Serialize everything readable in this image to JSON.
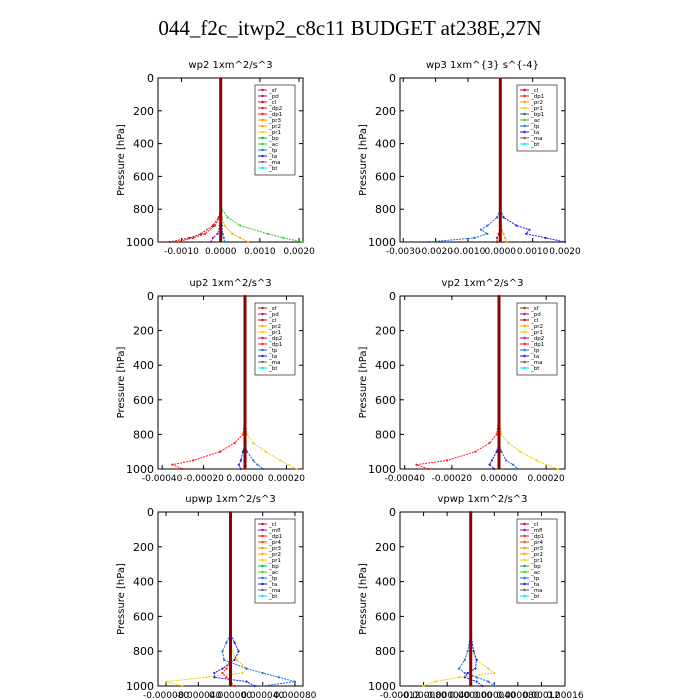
{
  "page": {
    "title": "044_f2c_itwp2_c8c11  BUDGET at238E,27N"
  },
  "colors": {
    "_sf": "#b22222",
    "_pd": "#8b1a8b",
    "_cl": "#d0021b",
    "_dp2": "#c2185b",
    "_dp1": "#ff1a1a",
    "_pr3": "#ff8c00",
    "_pr2": "#ffa500",
    "_pr1": "#f0d000",
    "_bp": "#00b050",
    "_ac": "#33cc33",
    "_tp": "#1f6fd6",
    "_ta": "#1a1aee",
    "_ma": "#666666",
    "_bt": "#00e5ff",
    "_mfl": "#7b1fa2",
    "_pr4": "#e65100",
    "_dp": "#b71c1c",
    "_pr": "#ff6f00"
  },
  "chart_data": [
    {
      "type": "line",
      "title": "wp2   1xm^2/s^3",
      "ylabel": "Pressure  [hPa]",
      "xlim": [
        -0.0016,
        0.0021
      ],
      "ylim": [
        1000,
        0
      ],
      "xticks": [
        "-0.0010",
        "0.0000",
        "0.0010",
        "0.0020"
      ],
      "xtick_values": [
        -0.001,
        0.0,
        0.001,
        0.002
      ],
      "yticks": [
        "0",
        "200",
        "400",
        "600",
        "800",
        "1000"
      ],
      "ytick_values": [
        0,
        200,
        400,
        600,
        800,
        1000
      ],
      "legend": [
        "_sf",
        "_pd",
        "_cl",
        "_dp2",
        "_dp1",
        "_pr3",
        "_pr2",
        "_pr1",
        "_bp",
        "_ac",
        "_tp",
        "_ta",
        "_ma",
        "_bt"
      ],
      "legend_position": "top-right",
      "pressure": [
        0,
        100,
        200,
        300,
        400,
        500,
        600,
        700,
        800,
        850,
        900,
        950,
        975,
        1000
      ],
      "series": [
        {
          "name": "_ac",
          "values": [
            0,
            0,
            0,
            0,
            0,
            0,
            0,
            0,
            2e-05,
            0.00018,
            0.0005,
            0.0012,
            0.0016,
            0.0021
          ]
        },
        {
          "name": "_pr2",
          "values": [
            0,
            0,
            0,
            0,
            0,
            0,
            0,
            0,
            0,
            3e-05,
            0.0001,
            0.0003,
            0.0005,
            0.0007
          ]
        },
        {
          "name": "_cl",
          "values": [
            0,
            0,
            0,
            0,
            0,
            0,
            0,
            0,
            0,
            -5e-05,
            -0.0002,
            -0.0005,
            -0.0008,
            -0.0013
          ]
        },
        {
          "name": "_dp1",
          "values": [
            0,
            0,
            0,
            0,
            0,
            0,
            0,
            0,
            0,
            -3e-05,
            -0.00015,
            -0.0004,
            -0.0007,
            -0.0011
          ]
        },
        {
          "name": "_pd",
          "values": [
            0,
            0,
            0,
            0,
            0,
            0,
            0,
            0,
            0,
            0,
            -2e-05,
            -8e-05,
            -0.0002,
            -0.00025
          ]
        },
        {
          "name": "_tp",
          "values": [
            0,
            0,
            0,
            0,
            0,
            0,
            0,
            0,
            0,
            1e-05,
            3e-05,
            5e-05,
            8e-05,
            0.0001
          ]
        }
      ]
    },
    {
      "type": "line",
      "title": "wp3   1xm^{3} s^{-4}",
      "ylabel": "Pressure  [hPa]",
      "xlim": [
        -0.0031,
        0.002
      ],
      "ylim": [
        1000,
        0
      ],
      "xticks": [
        "-0.0030",
        "-0.0020",
        "-0.0010",
        "0.0000",
        "0.0010",
        "0.0020"
      ],
      "xtick_values": [
        -0.003,
        -0.002,
        -0.001,
        0.0,
        0.001,
        0.002
      ],
      "yticks": [
        "0",
        "200",
        "400",
        "600",
        "800",
        "1000"
      ],
      "ytick_values": [
        0,
        200,
        400,
        600,
        800,
        1000
      ],
      "legend": [
        "_cl",
        "_dp1",
        "_pr2",
        "_pr1",
        "_bp1",
        "_ac",
        "_tp",
        "_ta",
        "_ma",
        "_bt"
      ],
      "legend_position": "top-right",
      "pressure": [
        0,
        100,
        200,
        300,
        400,
        500,
        600,
        700,
        800,
        850,
        900,
        925,
        950,
        975,
        1000
      ],
      "series": [
        {
          "name": "_tp",
          "values": [
            0,
            0,
            0,
            0,
            0,
            0,
            0,
            0,
            0,
            -0.0001,
            -0.0004,
            -0.0006,
            -0.0004,
            -0.0008,
            -0.0022
          ]
        },
        {
          "name": "_ta",
          "values": [
            0,
            0,
            0,
            0,
            0,
            0,
            0,
            0,
            0,
            0.0001,
            0.0005,
            0.0009,
            0.0008,
            0.0014,
            0.002
          ]
        },
        {
          "name": "_cl",
          "values": [
            0,
            0,
            0,
            0,
            0,
            0,
            0,
            0,
            0,
            0,
            0,
            0,
            -5e-05,
            -0.0001,
            -0.0001
          ]
        },
        {
          "name": "_pr2",
          "values": [
            0,
            0,
            0,
            0,
            0,
            0,
            0,
            0,
            0,
            0,
            3e-05,
            5e-05,
            0.0001,
            0.00015,
            0.0002
          ]
        }
      ]
    },
    {
      "type": "line",
      "title": "up2   1xm^2/s^3",
      "ylabel": "Pressure  [hPa]",
      "xlim": [
        -0.00042,
        0.00028
      ],
      "ylim": [
        1000,
        0
      ],
      "xticks": [
        "-0.00040",
        "-0.00020",
        "0.00000",
        "0.00020"
      ],
      "xtick_values": [
        -0.0004,
        -0.0002,
        0.0,
        0.0002
      ],
      "yticks": [
        "0",
        "200",
        "400",
        "600",
        "800",
        "1000"
      ],
      "ytick_values": [
        0,
        200,
        400,
        600,
        800,
        1000
      ],
      "legend": [
        "_sf",
        "_pd",
        "_cl",
        "_pr2",
        "_pr1",
        "_dp2",
        "_dp1",
        "_tp",
        "_ta",
        "_ma",
        "_bt"
      ],
      "legend_position": "top-right",
      "pressure": [
        0,
        100,
        200,
        300,
        400,
        500,
        600,
        700,
        800,
        850,
        900,
        950,
        975,
        1000
      ],
      "series": [
        {
          "name": "_dp1",
          "values": [
            0,
            0,
            0,
            0,
            0,
            0,
            0,
            0,
            -1e-05,
            -5e-05,
            -0.00012,
            -0.00025,
            -0.00035,
            -0.0003
          ]
        },
        {
          "name": "_pr1",
          "values": [
            0,
            0,
            0,
            0,
            0,
            0,
            0,
            0,
            1e-05,
            4e-05,
            0.0001,
            0.00017,
            0.00021,
            0.00025
          ]
        },
        {
          "name": "_tp",
          "values": [
            0,
            0,
            0,
            0,
            0,
            0,
            0,
            0,
            0,
            0,
            1e-05,
            4e-05,
            6e-05,
            9e-05
          ]
        },
        {
          "name": "_ta",
          "values": [
            0,
            0,
            0,
            0,
            0,
            0,
            0,
            0,
            0,
            0,
            -1e-05,
            -2e-05,
            -3e-05,
            -2e-05
          ]
        }
      ]
    },
    {
      "type": "line",
      "title": "vp2   1xm^2/s^3",
      "ylabel": "Pressure  [hPa]",
      "xlim": [
        -0.00042,
        0.00028
      ],
      "ylim": [
        1000,
        0
      ],
      "xticks": [
        "-0.00040",
        "-0.00020",
        "0.00000",
        "0.00020"
      ],
      "xtick_values": [
        -0.0004,
        -0.0002,
        0.0,
        0.0002
      ],
      "yticks": [
        "0",
        "200",
        "400",
        "600",
        "800",
        "1000"
      ],
      "ytick_values": [
        0,
        200,
        400,
        600,
        800,
        1000
      ],
      "legend": [
        "_sf",
        "_pd",
        "_cl",
        "_pr2",
        "_pr1",
        "_dp2",
        "_dp1",
        "_tp",
        "_ta",
        "_ma",
        "_bt"
      ],
      "legend_position": "top-right",
      "pressure": [
        0,
        100,
        200,
        300,
        400,
        500,
        600,
        700,
        800,
        850,
        900,
        950,
        975,
        1000
      ],
      "series": [
        {
          "name": "_dp1",
          "values": [
            0,
            0,
            0,
            0,
            0,
            0,
            0,
            0,
            -1e-05,
            -4e-05,
            -0.0001,
            -0.00022,
            -0.00035,
            -0.0003
          ]
        },
        {
          "name": "_pr1",
          "values": [
            0,
            0,
            0,
            0,
            0,
            0,
            0,
            0,
            1e-05,
            4e-05,
            9e-05,
            0.00016,
            0.0002,
            0.00025
          ]
        },
        {
          "name": "_tp",
          "values": [
            0,
            0,
            0,
            0,
            0,
            0,
            0,
            0,
            0,
            0,
            1e-05,
            3e-05,
            6e-05,
            8e-05
          ]
        },
        {
          "name": "_ta",
          "values": [
            0,
            0,
            0,
            0,
            0,
            0,
            0,
            0,
            0,
            0,
            -1e-05,
            -3e-05,
            -4e-05,
            -2e-05
          ]
        }
      ]
    },
    {
      "type": "line",
      "title": "upwp   1xm^2/s^3",
      "ylabel": "Pressure  [hPa]",
      "xlim": [
        -9e-05,
        9e-05
      ],
      "ylim": [
        1000,
        0
      ],
      "xticks": [
        "-0.000080",
        "-0.000040",
        "0.000000",
        "0.000040",
        "0.000080"
      ],
      "xtick_values": [
        -8e-05,
        -4e-05,
        0.0,
        4e-05,
        8e-05
      ],
      "yticks": [
        "0",
        "200",
        "400",
        "600",
        "800",
        "1000"
      ],
      "ytick_values": [
        0,
        200,
        400,
        600,
        800,
        1000
      ],
      "legend": [
        "_cl",
        "_mfl",
        "_dp1",
        "_pr4",
        "_pr3",
        "_pr2",
        "_pr1",
        "_bp",
        "_ac",
        "_tp",
        "_ta",
        "_ma",
        "_bt"
      ],
      "legend_position": "top-right",
      "pressure": [
        0,
        100,
        200,
        300,
        400,
        500,
        600,
        700,
        750,
        800,
        850,
        900,
        925,
        950,
        975,
        1000
      ],
      "series": [
        {
          "name": "_pr1",
          "values": [
            0,
            0,
            0,
            0,
            0,
            0,
            0,
            0,
            0,
            2e-06,
            8e-06,
            2e-05,
            1.5e-05,
            -3e-05,
            -8e-05,
            -6e-05
          ]
        },
        {
          "name": "_tp",
          "values": [
            0,
            0,
            0,
            0,
            0,
            0,
            0,
            0,
            -5e-06,
            -1e-05,
            -8e-06,
            2e-05,
            4e-05,
            6e-05,
            8e-05,
            4e-05
          ]
        },
        {
          "name": "_ta",
          "values": [
            0,
            0,
            0,
            0,
            0,
            0,
            0,
            0,
            5e-06,
            1e-05,
            5e-06,
            -1e-05,
            -2e-05,
            -2e-05,
            2e-05,
            3e-05
          ]
        },
        {
          "name": "_dp1",
          "values": [
            0,
            0,
            0,
            0,
            0,
            0,
            0,
            0,
            0,
            0,
            0,
            -5e-06,
            -1e-05,
            -5e-06,
            0,
            5e-06
          ]
        }
      ]
    },
    {
      "type": "line",
      "title": "vpwp   1xm^2/s^3",
      "ylabel": "Pressure  [hPa]",
      "xlim": [
        -0.00012,
        0.00016
      ],
      "ylim": [
        1000,
        0
      ],
      "xticks": [
        "-0.00012",
        "-0.000080",
        "-0.000040",
        "0.000000",
        "0.000040",
        "0.000080",
        "0.00012",
        "0.00016"
      ],
      "xtick_values": [
        -0.00012,
        -8e-05,
        -4e-05,
        0.0,
        4e-05,
        8e-05,
        0.00012,
        0.00016
      ],
      "yticks": [
        "0",
        "200",
        "400",
        "600",
        "800",
        "1000"
      ],
      "ytick_values": [
        0,
        200,
        400,
        600,
        800,
        1000
      ],
      "legend": [
        "_cl",
        "_mfl",
        "_dp1",
        "_pr4",
        "_pr3",
        "_pr2",
        "_pr1",
        "_bp",
        "_ac",
        "_tp",
        "_ta",
        "_ma",
        "_bt"
      ],
      "legend_position": "top-right",
      "pressure": [
        0,
        100,
        200,
        300,
        400,
        500,
        600,
        700,
        800,
        850,
        900,
        925,
        950,
        975,
        1000
      ],
      "series": [
        {
          "name": "_pr1",
          "values": [
            0,
            0,
            0,
            0,
            0,
            0,
            0,
            0,
            0,
            1e-05,
            3e-05,
            4e-05,
            -2e-05,
            -6e-05,
            -8e-05
          ]
        },
        {
          "name": "_tp",
          "values": [
            0,
            0,
            0,
            0,
            0,
            0,
            0,
            0,
            -5e-06,
            -1e-05,
            -2e-05,
            -1e-05,
            1e-05,
            3e-05,
            4e-05
          ]
        },
        {
          "name": "_ta",
          "values": [
            0,
            0,
            0,
            0,
            0,
            0,
            0,
            0,
            5e-06,
            1e-05,
            8e-06,
            -5e-06,
            -1e-05,
            1e-05,
            2e-05
          ]
        }
      ]
    }
  ]
}
